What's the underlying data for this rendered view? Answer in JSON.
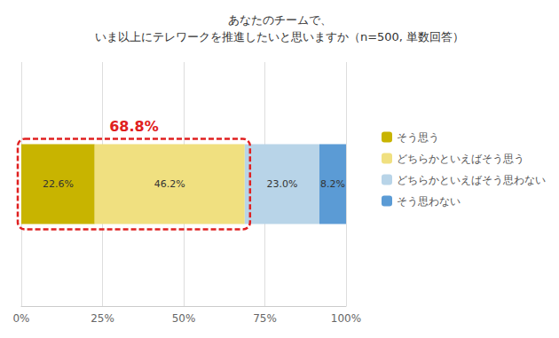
{
  "chart_data": {
    "type": "bar",
    "title": "あなたのチームで、\nいま以上にテレワークを推進したいと思いますか（n=500, 単数回答）",
    "orientation": "horizontal",
    "stacked": true,
    "categories": [
      null
    ],
    "series": [
      {
        "name": "そう思う",
        "color": "#C8B400",
        "values": [
          22.6
        ],
        "value_labels": [
          "22.6%"
        ]
      },
      {
        "name": "どちらかといえばそう思う",
        "color": "#F0E080",
        "values": [
          46.2
        ],
        "value_labels": [
          "46.2%"
        ]
      },
      {
        "name": "どちらかといえばそう思わない",
        "color": "#B8D4E8",
        "values": [
          23.0
        ],
        "value_labels": [
          "23.0%"
        ]
      },
      {
        "name": "そう思わない",
        "color": "#5B9BD5",
        "values": [
          8.2
        ],
        "value_labels": [
          "8.2%"
        ]
      }
    ],
    "xlim": [
      0,
      100
    ],
    "xticks": [
      {
        "value": 0,
        "label": "0%"
      },
      {
        "value": 25,
        "label": "25%"
      },
      {
        "value": 50,
        "label": "50%"
      },
      {
        "value": 75,
        "label": "75%"
      },
      {
        "value": 100,
        "label": "100%"
      }
    ],
    "grid": true,
    "legend": "right",
    "data_labels": true,
    "tick_labels": "x",
    "annotations": [
      {
        "text": "68.8%",
        "value": 68.8,
        "color": "#E02020"
      }
    ]
  }
}
